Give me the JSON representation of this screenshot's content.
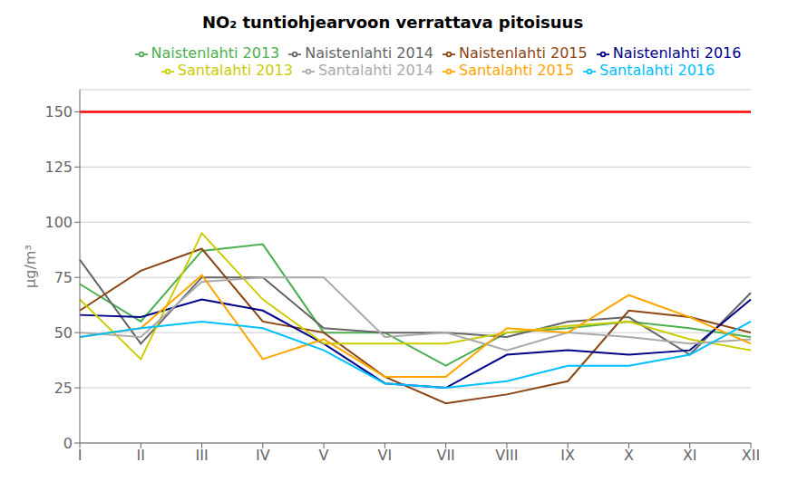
{
  "chart_data": {
    "type": "line",
    "title": "NO₂ tuntiohjearvoon verrattava pitoisuus",
    "y_label": "µg/m³",
    "categories": [
      "I",
      "II",
      "III",
      "IV",
      "V",
      "VI",
      "VII",
      "VIII",
      "IX",
      "X",
      "XI",
      "XII"
    ],
    "series": [
      {
        "name": "Naistenlahti 2013",
        "color": "#4CAF50",
        "values": [
          72,
          55,
          87,
          90,
          50,
          50,
          35,
          50,
          52,
          55,
          52,
          48
        ]
      },
      {
        "name": "Naistenlahti 2014",
        "color": "#666666",
        "values": [
          83,
          45,
          75,
          75,
          52,
          50,
          50,
          48,
          55,
          57,
          40,
          68
        ]
      },
      {
        "name": "Naistenlahti 2015",
        "color": "#8B4513",
        "values": [
          60,
          78,
          88,
          55,
          50,
          30,
          18,
          22,
          28,
          60,
          57,
          50
        ]
      },
      {
        "name": "Naistenlahti 2016",
        "color": "#00008B",
        "values": [
          58,
          57,
          65,
          60,
          45,
          27,
          25,
          40,
          42,
          40,
          42,
          65
        ]
      },
      {
        "name": "Santalahti 2013",
        "color": "#CCCC00",
        "values": [
          65,
          38,
          95,
          65,
          45,
          45,
          45,
          50,
          53,
          55,
          47,
          42
        ]
      },
      {
        "name": "Santalahti 2014",
        "color": "#AAAAAA",
        "values": [
          50,
          48,
          73,
          75,
          75,
          48,
          50,
          42,
          50,
          48,
          45,
          47
        ]
      },
      {
        "name": "Santalahti 2015",
        "color": "#FFA500",
        "values": [
          48,
          52,
          76,
          38,
          47,
          30,
          30,
          52,
          50,
          67,
          57,
          45
        ]
      },
      {
        "name": "Santalahti 2016",
        "color": "#00BFFF",
        "values": [
          48,
          52,
          55,
          52,
          42,
          27,
          25,
          28,
          35,
          35,
          40,
          55
        ]
      }
    ],
    "reference_lines": [
      {
        "value": 150,
        "color": "red"
      }
    ],
    "ylim": [
      0,
      160
    ],
    "yticks": [
      0,
      25,
      50,
      75,
      100,
      125,
      150
    ],
    "grid": true,
    "legend": "top"
  }
}
